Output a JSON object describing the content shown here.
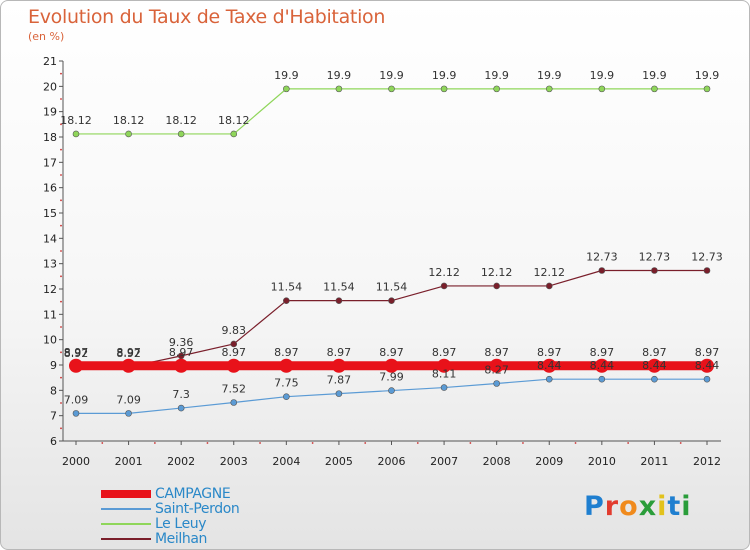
{
  "title": "Evolution du Taux de Taxe d'Habitation",
  "unit_label": "(en %)",
  "logo": {
    "text": "Proxiti",
    "letter_colors": [
      "#1f7fd0",
      "#e23b2e",
      "#f08a1c",
      "#2a9d3a",
      "#e2c21c",
      "#1f7fd0",
      "#2a9d3a"
    ]
  },
  "chart_data": {
    "type": "line",
    "x": [
      2000,
      2001,
      2002,
      2003,
      2004,
      2005,
      2006,
      2007,
      2008,
      2009,
      2010,
      2011,
      2012
    ],
    "ylim": [
      6,
      21
    ],
    "yticks": [
      6,
      7,
      8,
      9,
      10,
      11,
      12,
      13,
      14,
      15,
      16,
      17,
      18,
      19,
      20,
      21
    ],
    "grid": false,
    "legend_position": "bottom-left",
    "series": [
      {
        "name": "CAMPAGNE",
        "color": "#e8121a",
        "values": [
          8.97,
          8.97,
          8.97,
          8.97,
          8.97,
          8.97,
          8.97,
          8.97,
          8.97,
          8.97,
          8.97,
          8.97,
          8.97
        ],
        "labels": [
          "8.97",
          "8.97",
          "8.97",
          "8.97",
          "8.97",
          "8.97",
          "8.97",
          "8.97",
          "8.97",
          "8.97",
          "8.97",
          "8.97",
          "8.97"
        ]
      },
      {
        "name": "Saint-Perdon",
        "color": "#5b9bd5",
        "values": [
          7.09,
          7.09,
          7.3,
          7.52,
          7.75,
          7.87,
          7.99,
          8.11,
          8.27,
          8.44,
          8.44,
          8.44,
          8.44
        ],
        "labels": [
          "7.09",
          "7.09",
          "7.3",
          "7.52",
          "7.75",
          "7.87",
          "7.99",
          "8.11",
          "8.27",
          "8.44",
          "8.44",
          "8.44",
          "8.44"
        ]
      },
      {
        "name": "Le Leuy",
        "color": "#8fd65a",
        "values": [
          18.12,
          18.12,
          18.12,
          18.12,
          19.9,
          19.9,
          19.9,
          19.9,
          19.9,
          19.9,
          19.9,
          19.9,
          19.9
        ],
        "labels": [
          "18.12",
          "18.12",
          "18.12",
          "18.12",
          "19.9",
          "19.9",
          "19.9",
          "19.9",
          "19.9",
          "19.9",
          "19.9",
          "19.9",
          "19.9"
        ]
      },
      {
        "name": "Meilhan",
        "color": "#7a1f2b",
        "values": [
          8.92,
          8.92,
          9.36,
          9.83,
          11.54,
          11.54,
          11.54,
          12.12,
          12.12,
          12.12,
          12.73,
          12.73,
          12.73
        ],
        "labels": [
          "8.92",
          "8.92",
          "9.36",
          "9.83",
          "11.54",
          "11.54",
          "11.54",
          "12.12",
          "12.12",
          "12.12",
          "12.73",
          "12.73",
          "12.73"
        ]
      }
    ]
  }
}
